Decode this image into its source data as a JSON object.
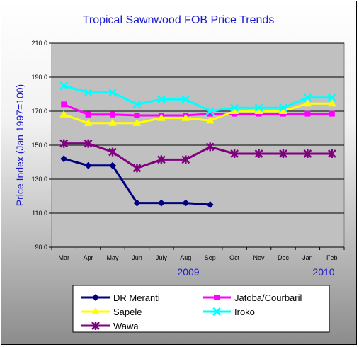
{
  "chart_data": {
    "type": "line",
    "title": "Tropical Sawnwood FOB Price Trends",
    "ylabel": "Price Index (Jan 1997=100)",
    "xlabel": "",
    "ylim": [
      90,
      210
    ],
    "yticks": [
      "210.0",
      "190.0",
      "170.0",
      "150.0",
      "130.0",
      "110.0",
      "90.0"
    ],
    "categories": [
      "Mar",
      "Apr",
      "May",
      "Jun",
      "July",
      "Aug",
      "Sep",
      "Oct",
      "Nov",
      "Dec",
      "Jan",
      "Feb"
    ],
    "year_labels": [
      "2009",
      "2010"
    ],
    "grid": true,
    "legend": "bottom",
    "series": [
      {
        "name": "DR Meranti",
        "color": "#000080",
        "marker": "diamond",
        "values": [
          142,
          138,
          138,
          116,
          116,
          116,
          115,
          null,
          null,
          null,
          null,
          null
        ]
      },
      {
        "name": "Jatoba/Courbaril",
        "color": "#ff00ff",
        "marker": "square",
        "values": [
          174,
          168,
          168,
          167.5,
          167.5,
          167.5,
          168.5,
          168.5,
          168.5,
          168.5,
          168.5,
          168.5
        ]
      },
      {
        "name": "Sapele",
        "color": "#ffff00",
        "marker": "triangle",
        "values": [
          168,
          163,
          163,
          163,
          166,
          166,
          164.5,
          170,
          170,
          170,
          174.5,
          174.5
        ]
      },
      {
        "name": "Iroko",
        "color": "#00ffff",
        "marker": "x",
        "values": [
          185,
          181,
          181,
          174,
          177,
          177,
          170,
          172,
          172,
          172,
          178,
          178
        ]
      },
      {
        "name": "Wawa",
        "color": "#800080",
        "marker": "star",
        "values": [
          151,
          151,
          146,
          136.5,
          141.5,
          141.5,
          149,
          145,
          145,
          145,
          145,
          145
        ]
      }
    ]
  }
}
